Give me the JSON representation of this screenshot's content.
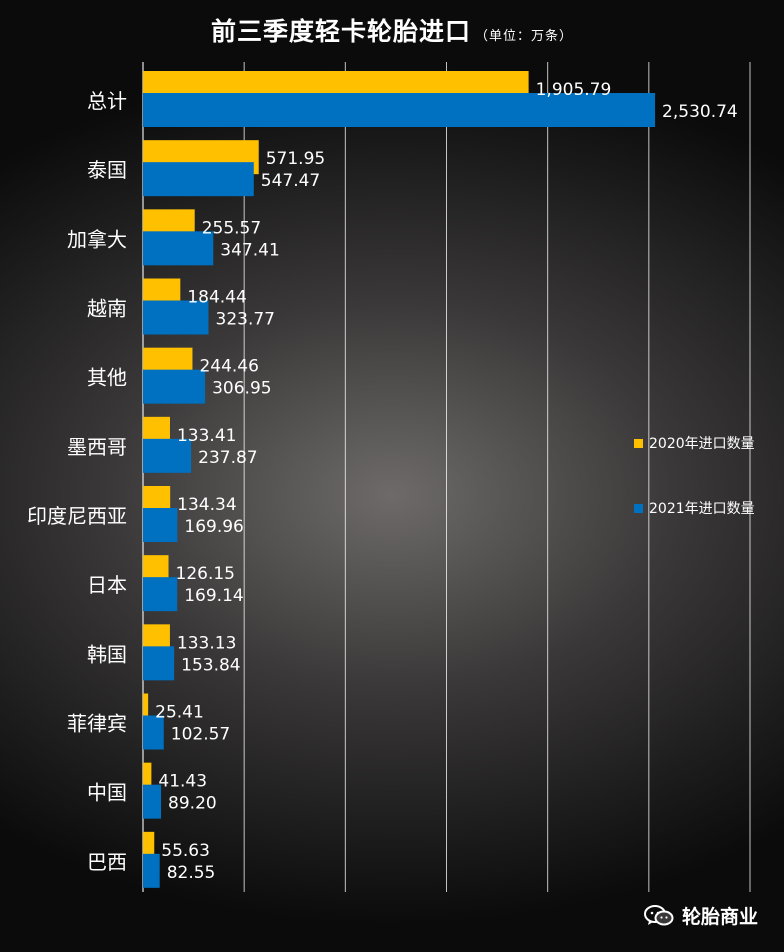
{
  "title": "前三季度轻卡轮胎进口",
  "unit": "（单位：万条）",
  "watermark": "轮胎商业",
  "colors": {
    "series2020": "#FFC000",
    "series2021": "#0070C0",
    "grid": "#ffffff"
  },
  "chart_data": {
    "type": "bar",
    "orientation": "horizontal",
    "categories": [
      "总计",
      "泰国",
      "加拿大",
      "越南",
      "其他",
      "墨西哥",
      "印度尼西亚",
      "日本",
      "韩国",
      "菲律宾",
      "中国",
      "巴西"
    ],
    "series": [
      {
        "name": "2020年进口数量",
        "values": [
          1905.79,
          571.95,
          255.57,
          184.44,
          244.46,
          133.41,
          134.34,
          126.15,
          133.13,
          25.41,
          41.43,
          55.63
        ],
        "labels": [
          "1,905.79",
          "571.95",
          "255.57",
          "184.44",
          "244.46",
          "133.41",
          "134.34",
          "126.15",
          "133.13",
          "25.41",
          "41.43",
          "55.63"
        ]
      },
      {
        "name": "2021年进口数量",
        "values": [
          2530.74,
          547.47,
          347.41,
          323.77,
          306.95,
          237.87,
          169.96,
          169.14,
          153.84,
          102.57,
          89.2,
          82.55
        ],
        "labels": [
          "2,530.74",
          "547.47",
          "347.41",
          "323.77",
          "306.95",
          "237.87",
          "169.96",
          "169.14",
          "153.84",
          "102.57",
          "89.20",
          "82.55"
        ]
      }
    ],
    "xlim": [
      0,
      3000
    ],
    "grid": true,
    "legend_position": "right"
  }
}
